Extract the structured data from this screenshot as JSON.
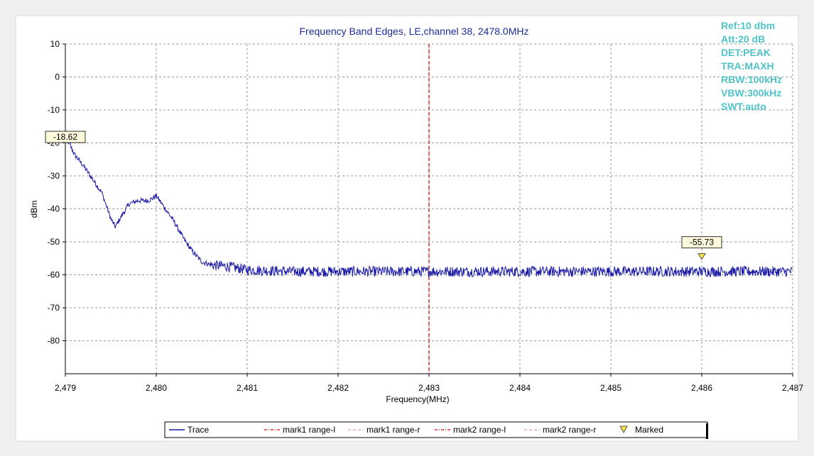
{
  "chart_data": {
    "type": "line",
    "title": "Frequency Band Edges, LE,channel 38, 2478.0MHz",
    "xlabel": "Frequency(MHz)",
    "ylabel": "dBm",
    "xlim": [
      2479,
      2487
    ],
    "ylim": [
      -90,
      10
    ],
    "x_ticks": [
      2479,
      2480,
      2481,
      2482,
      2483,
      2484,
      2485,
      2486,
      2487
    ],
    "x_tick_labels": [
      "2,479",
      "2,480",
      "2,481",
      "2,482",
      "2,483",
      "2,484",
      "2,485",
      "2,486",
      "2,487"
    ],
    "y_ticks": [
      10,
      0,
      -10,
      -20,
      -30,
      -40,
      -50,
      -60,
      -70,
      -80
    ],
    "y_tick_labels": [
      "10",
      "0",
      "-10",
      "-20",
      "-30",
      "-40",
      "-50",
      "-60",
      "-70",
      "-80"
    ],
    "grid": true,
    "colors": {
      "trace": "#1a1aa8",
      "mark_line": "#e03030",
      "marker_fill": "#f5e63c",
      "info_text": "#4fc3c8",
      "title_text": "#1f2a9a"
    },
    "series": [
      {
        "name": "Trace",
        "x": [
          2479.0,
          2479.05,
          2479.1,
          2479.2,
          2479.3,
          2479.4,
          2479.45,
          2479.5,
          2479.55,
          2479.6,
          2479.7,
          2479.8,
          2479.9,
          2479.95,
          2480.0,
          2480.05,
          2480.1,
          2480.2,
          2480.3,
          2480.4,
          2480.5,
          2480.6,
          2480.8,
          2481.0,
          2481.5,
          2482.0,
          2482.5,
          2483.0,
          2483.5,
          2484.0,
          2484.5,
          2485.0,
          2485.5,
          2486.0,
          2486.5,
          2487.0
        ],
        "y": [
          -18.6,
          -20.5,
          -23.5,
          -27,
          -31,
          -35,
          -39,
          -43,
          -45.5,
          -43,
          -38.5,
          -37.5,
          -37.5,
          -37,
          -36,
          -38,
          -40,
          -44,
          -49,
          -53,
          -56,
          -57,
          -57.5,
          -58.5,
          -59,
          -59,
          -59,
          -59,
          -59,
          -59,
          -59,
          -59,
          -59,
          -59,
          -59,
          -59
        ]
      }
    ],
    "vertical_lines": [
      {
        "x": 2483,
        "name": "mark2 range-l"
      }
    ],
    "markers": [
      {
        "x": 2479,
        "y": -18.62,
        "label": "-18.62"
      },
      {
        "x": 2486,
        "y": -55.73,
        "label": "-55.73"
      }
    ],
    "legend": {
      "placement": "bottom",
      "entries": [
        {
          "label": "Trace",
          "style": "solid"
        },
        {
          "label": "mark1 range-l",
          "style": "dash-dot"
        },
        {
          "label": "mark1 range-r",
          "style": "dash-light"
        },
        {
          "label": "mark2 range-l",
          "style": "dash-dot"
        },
        {
          "label": "mark2 range-r",
          "style": "dash-light"
        },
        {
          "label": "Marked",
          "style": "triangle"
        }
      ]
    },
    "info_panel": [
      "Ref:10 dbm",
      "Att:20 dB",
      "DET:PEAK",
      "TRA:MAXH",
      "RBW:100kHz",
      "VBW:300kHz",
      "SWT:auto"
    ]
  }
}
